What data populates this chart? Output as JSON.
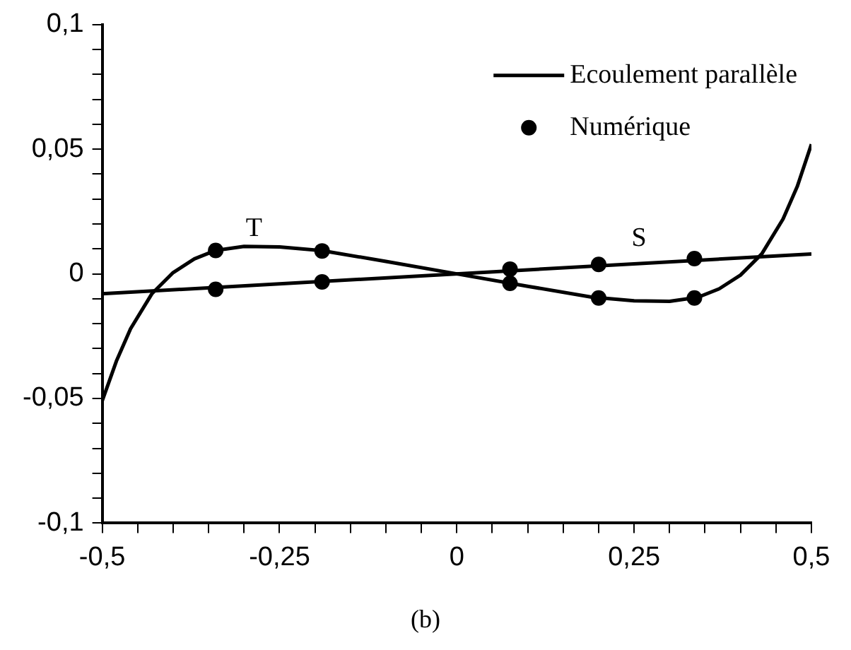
{
  "chart_data": {
    "type": "line",
    "xlim": [
      -0.5,
      0.5
    ],
    "xticks": [
      {
        "value": -0.5,
        "label": "-0,5"
      },
      {
        "value": -0.45,
        "label": null
      },
      {
        "value": -0.4,
        "label": null
      },
      {
        "value": -0.35,
        "label": null
      },
      {
        "value": -0.3,
        "label": null
      },
      {
        "value": -0.25,
        "label": "-0,25"
      },
      {
        "value": -0.2,
        "label": null
      },
      {
        "value": -0.15,
        "label": null
      },
      {
        "value": -0.1,
        "label": null
      },
      {
        "value": -0.05,
        "label": null
      },
      {
        "value": 0,
        "label": "0"
      },
      {
        "value": 0.05,
        "label": null
      },
      {
        "value": 0.1,
        "label": null
      },
      {
        "value": 0.15,
        "label": null
      },
      {
        "value": 0.2,
        "label": null
      },
      {
        "value": 0.25,
        "label": "0,25"
      },
      {
        "value": 0.3,
        "label": null
      },
      {
        "value": 0.35,
        "label": null
      },
      {
        "value": 0.4,
        "label": null
      },
      {
        "value": 0.45,
        "label": null
      },
      {
        "value": 0.5,
        "label": "0,5"
      }
    ],
    "ylim": [
      -0.1,
      0.1
    ],
    "yticks": [
      {
        "value": -0.1,
        "label": "-0,1"
      },
      {
        "value": -0.09,
        "label": null
      },
      {
        "value": -0.08,
        "label": null
      },
      {
        "value": -0.07,
        "label": null
      },
      {
        "value": -0.06,
        "label": null
      },
      {
        "value": -0.05,
        "label": "-0,05"
      },
      {
        "value": -0.04,
        "label": null
      },
      {
        "value": -0.03,
        "label": null
      },
      {
        "value": -0.02,
        "label": null
      },
      {
        "value": -0.01,
        "label": null
      },
      {
        "value": 0,
        "label": "0"
      },
      {
        "value": 0.01,
        "label": null
      },
      {
        "value": 0.02,
        "label": null
      },
      {
        "value": 0.03,
        "label": null
      },
      {
        "value": 0.04,
        "label": null
      },
      {
        "value": 0.05,
        "label": "0,05"
      },
      {
        "value": 0.06,
        "label": null
      },
      {
        "value": 0.07,
        "label": null
      },
      {
        "value": 0.08,
        "label": null
      },
      {
        "value": 0.09,
        "label": null
      },
      {
        "value": 0.1,
        "label": "0,1"
      }
    ],
    "series": [
      {
        "name": "Ecoulement parallèle",
        "marker": "none",
        "color": "#000000",
        "x": [
          -0.5,
          -0.48,
          -0.46,
          -0.43,
          -0.4,
          -0.37,
          -0.34,
          -0.3,
          -0.25,
          -0.19,
          -0.1,
          0,
          0.1,
          0.19,
          0.25,
          0.3,
          0.34,
          0.37,
          0.4,
          0.43,
          0.46,
          0.48,
          0.5
        ],
        "values": [
          -0.051,
          -0.035,
          -0.022,
          -0.008,
          0.0005,
          0.006,
          0.0094,
          0.011,
          0.0108,
          0.0093,
          0.005,
          0,
          -0.005,
          -0.0093,
          -0.0108,
          -0.011,
          -0.0094,
          -0.006,
          -0.0005,
          0.008,
          0.022,
          0.035,
          0.052
        ]
      },
      {
        "marker": "none",
        "color": "#000000",
        "x": [
          -0.5,
          0.5
        ],
        "values": [
          -0.008,
          0.008
        ]
      },
      {
        "name": "Numérique",
        "type": "scatter",
        "marker": "circle",
        "color": "#000000",
        "x": [
          -0.34,
          -0.19,
          0.075,
          0.2,
          0.335,
          -0.34,
          -0.19,
          0.075,
          0.2,
          0.335
        ],
        "values": [
          0.0094,
          0.0092,
          -0.0038,
          -0.0097,
          -0.0097,
          -0.0062,
          -0.0032,
          0.0019,
          0.0038,
          0.0061
        ]
      }
    ],
    "line_style": "solid",
    "grid": false,
    "legend": "top right",
    "annotations": [
      "T",
      "S",
      "(b)"
    ]
  }
}
